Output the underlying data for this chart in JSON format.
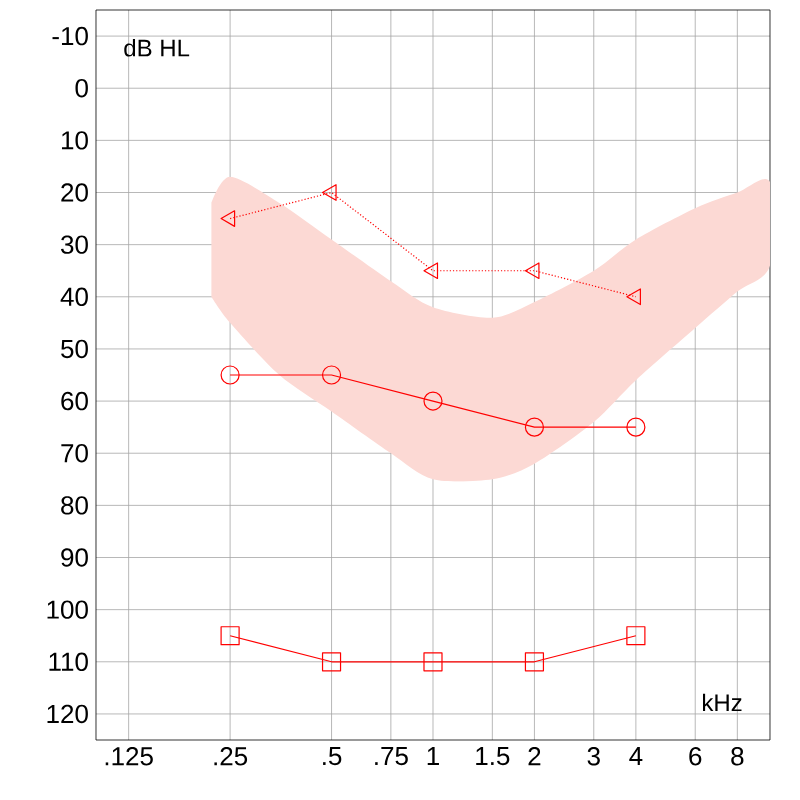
{
  "chart_data": {
    "type": "line",
    "xlim": [
      0.1,
      10
    ],
    "ylim": [
      125,
      -15
    ],
    "log": "x",
    "grid": true,
    "xticks": [
      {
        "value": 0.125,
        "label": ".125"
      },
      {
        "value": 0.25,
        "label": ".25"
      },
      {
        "value": 0.5,
        "label": ".5"
      },
      {
        "value": 0.75,
        "label": ".75"
      },
      1,
      1.5,
      2,
      3,
      4,
      6,
      8
    ],
    "yticks": [
      -10,
      0,
      10,
      20,
      30,
      40,
      50,
      60,
      70,
      80,
      90,
      100,
      110,
      120
    ],
    "annotations": [
      "dB HL",
      "kHz"
    ],
    "series": [
      {
        "type": "area",
        "color": "#fcd9d4",
        "x": [
          0.22,
          0.25,
          0.35,
          0.5,
          0.75,
          1,
          1.5,
          2,
          3,
          4,
          6,
          8,
          10
        ],
        "values": [
          null,
          null,
          null,
          null,
          null,
          null,
          null,
          null,
          null,
          null,
          null,
          null,
          null
        ],
        "lower": [
          40,
          45,
          55,
          62,
          70,
          75,
          75,
          72,
          64,
          56,
          46,
          39,
          34
        ],
        "upper": [
          22,
          17,
          22,
          29,
          37,
          42,
          44,
          41,
          35,
          29,
          23,
          20,
          18
        ]
      },
      {
        "color": "#ff0000",
        "marker": "triangle",
        "line_style": "dotted",
        "x": [
          0.25,
          0.5,
          1,
          2,
          4
        ],
        "values": [
          25,
          20,
          35,
          35,
          40
        ]
      },
      {
        "color": "#ff0000",
        "marker": "circle",
        "line_style": "solid",
        "x": [
          0.25,
          0.5,
          1,
          2,
          4
        ],
        "values": [
          55,
          55,
          60,
          65,
          65
        ]
      },
      {
        "color": "#ff0000",
        "marker": "square",
        "line_style": "solid",
        "x": [
          0.25,
          0.5,
          1,
          2,
          4
        ],
        "values": [
          105,
          110,
          110,
          110,
          105
        ]
      }
    ]
  }
}
